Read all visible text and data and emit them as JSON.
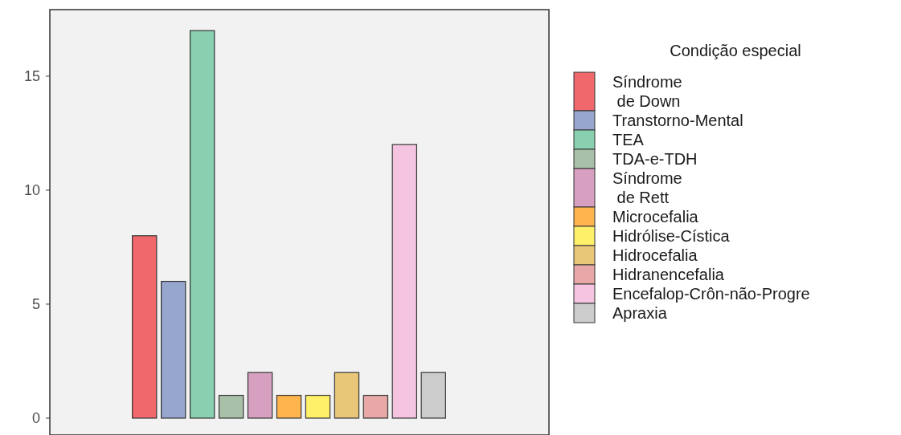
{
  "chart_data": {
    "type": "bar",
    "legend_title": "Condição especial",
    "categories": [
      null
    ],
    "series": [
      {
        "name": "Síndrome de Down",
        "color": "#f0686c",
        "values": [
          8
        ]
      },
      {
        "name": "Transtorno-Mental",
        "color": "#96a6cc",
        "values": [
          6
        ]
      },
      {
        "name": "TEA",
        "color": "#88d0b0",
        "values": [
          17
        ]
      },
      {
        "name": "TDA-e-TDH",
        "color": "#a8c0a8",
        "values": [
          1
        ]
      },
      {
        "name": "Síndrome de Rett",
        "color": "#d7a0c0",
        "values": [
          2
        ]
      },
      {
        "name": "Microcefalia",
        "color": "#ffb44e",
        "values": [
          1
        ]
      },
      {
        "name": "Hidrólise-Cística",
        "color": "#fff06a",
        "values": [
          1
        ]
      },
      {
        "name": "Hidrocefalia",
        "color": "#e8c878",
        "values": [
          2
        ]
      },
      {
        "name": "Hidranencefalia",
        "color": "#e8a8a8",
        "values": [
          1
        ]
      },
      {
        "name": "Encefalop-Crôn-não-Progre",
        "color": "#f4c4e0",
        "values": [
          12
        ]
      },
      {
        "name": "Apraxia",
        "color": "#cccccc",
        "values": [
          2
        ]
      }
    ],
    "ylim": [
      -0.74,
      17.92
    ],
    "yticks": [
      0,
      5,
      10,
      15
    ],
    "legend": "right",
    "grid": false
  }
}
